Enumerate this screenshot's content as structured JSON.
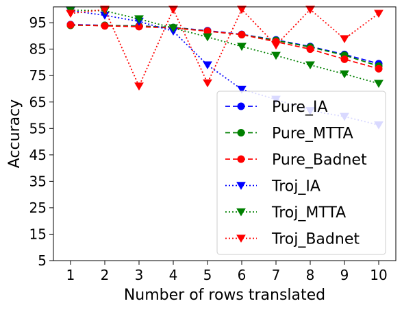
{
  "chart_data": {
    "type": "line",
    "xlabel": "Number of rows translated",
    "ylabel": "Accuracy",
    "x": [
      1,
      2,
      3,
      4,
      5,
      6,
      7,
      8,
      9,
      10
    ],
    "x_ticks": [
      "1",
      "2",
      "3",
      "4",
      "5",
      "6",
      "7",
      "8",
      "9",
      "10"
    ],
    "y_ticks": [
      "5",
      "15",
      "25",
      "35",
      "45",
      "55",
      "65",
      "75",
      "85",
      "95"
    ],
    "ylim": [
      5,
      101
    ],
    "grid": false,
    "legend_position": "center-right",
    "series": [
      {
        "name": "Pure_IA",
        "color": "#0000ff",
        "line_style": "dashed",
        "marker": "circle",
        "values": [
          94.3,
          94.0,
          93.8,
          93.2,
          92.0,
          90.6,
          88.5,
          86.0,
          83.0,
          79.5
        ]
      },
      {
        "name": "Pure_MTTA",
        "color": "#008000",
        "line_style": "dashed",
        "marker": "circle",
        "values": [
          94.0,
          94.0,
          93.7,
          93.2,
          91.8,
          90.5,
          88.3,
          85.8,
          82.7,
          78.6
        ]
      },
      {
        "name": "Pure_Badnet",
        "color": "#ff0000",
        "line_style": "dashed",
        "marker": "circle",
        "values": [
          94.2,
          93.8,
          93.5,
          93.0,
          91.8,
          90.5,
          87.8,
          85.0,
          81.2,
          77.6
        ]
      },
      {
        "name": "Troj_IA",
        "color": "#0000ff",
        "line_style": "dotted",
        "marker": "triangle-down",
        "values": [
          99.6,
          97.8,
          95.5,
          91.8,
          79.0,
          69.8,
          66.0,
          61.7,
          59.5,
          56.3
        ]
      },
      {
        "name": "Troj_MTTA",
        "color": "#008000",
        "line_style": "dotted",
        "marker": "triangle-down",
        "values": [
          99.8,
          99.5,
          96.4,
          93.0,
          89.6,
          86.0,
          82.6,
          79.0,
          75.6,
          72.0
        ]
      },
      {
        "name": "Troj_Badnet",
        "color": "#ff0000",
        "line_style": "dotted",
        "marker": "triangle-down",
        "values": [
          98.5,
          100.0,
          71.0,
          100.0,
          72.2,
          100.0,
          86.5,
          100.0,
          88.9,
          98.5
        ]
      }
    ]
  }
}
